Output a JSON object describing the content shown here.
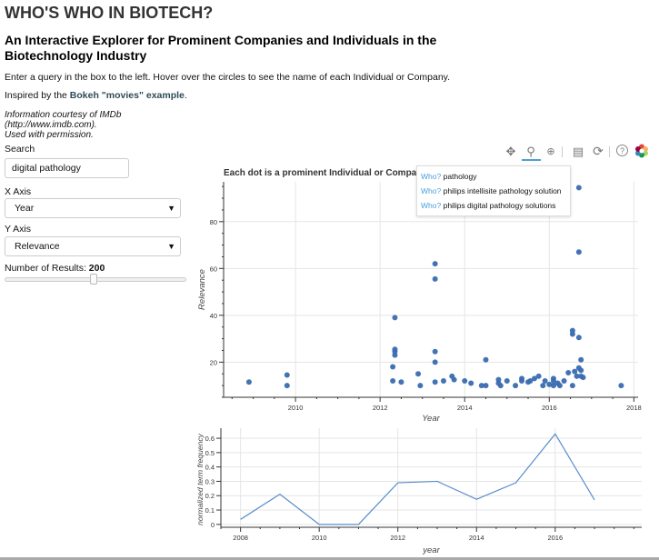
{
  "header": {
    "title": "WHO'S WHO IN BIOTECH?",
    "subtitle_line1": "An Interactive Explorer for Prominent Companies and Individuals in the",
    "subtitle_line2": "Biotechnology Industry",
    "instructions": "Enter a query in the box to the left. Hover over the circles to see the name of each Individual or Company.",
    "inspired_prefix": "Inspired by the ",
    "inspired_link": "Bokeh \"movies\" example",
    "inspired_suffix": ".",
    "credit_line1": "Information courtesy of IMDb",
    "credit_line2": "(http://www.imdb.com).",
    "credit_line3": "Used with permission."
  },
  "controls": {
    "search_label": "Search",
    "search_value": "digital pathology",
    "x_axis_label": "X Axis",
    "x_axis_value": "Year",
    "y_axis_label": "Y Axis",
    "y_axis_value": "Relevance",
    "results_label": "Number of Results: ",
    "results_value": "200",
    "results_fraction": 0.49
  },
  "toolbar": {
    "icons": [
      "pan-icon",
      "box-zoom-icon",
      "wheel-zoom-icon",
      "save-icon",
      "reset-icon",
      "help-icon",
      "bokeh-logo"
    ]
  },
  "tooltip": {
    "key": "Who?",
    "rows": [
      "pathology",
      "philips intellisite pathology solution",
      "philips digital pathology solutions"
    ]
  },
  "chart_data": [
    {
      "type": "scatter",
      "title": "Each dot is a prominent Individual or Company",
      "xlabel": "Year",
      "ylabel": "Relevance",
      "xlim": [
        2008.3,
        2018.1
      ],
      "ylim": [
        5,
        97
      ],
      "xticks": [
        2010,
        2012,
        2014,
        2016,
        2018
      ],
      "yticks": [
        20,
        40,
        60,
        80
      ],
      "grid": true,
      "color": "#3a6cb0",
      "points": [
        [
          2008.9,
          11.5
        ],
        [
          2009.8,
          14.5
        ],
        [
          2009.8,
          10
        ],
        [
          2012.3,
          12
        ],
        [
          2012.3,
          18
        ],
        [
          2012.35,
          39
        ],
        [
          2012.35,
          25.5
        ],
        [
          2012.35,
          24.5
        ],
        [
          2012.35,
          23
        ],
        [
          2012.5,
          11.5
        ],
        [
          2012.9,
          15
        ],
        [
          2012.95,
          10
        ],
        [
          2013.3,
          62
        ],
        [
          2013.3,
          55.5
        ],
        [
          2013.3,
          24.5
        ],
        [
          2013.3,
          20
        ],
        [
          2013.3,
          11.5
        ],
        [
          2013.5,
          12
        ],
        [
          2013.7,
          14
        ],
        [
          2013.75,
          12.5
        ],
        [
          2014.0,
          12
        ],
        [
          2014.15,
          11
        ],
        [
          2014.4,
          10
        ],
        [
          2014.5,
          10
        ],
        [
          2014.5,
          21
        ],
        [
          2014.8,
          12.5
        ],
        [
          2014.8,
          11
        ],
        [
          2014.85,
          10
        ],
        [
          2015.0,
          12
        ],
        [
          2015.2,
          10
        ],
        [
          2015.35,
          12
        ],
        [
          2015.5,
          11.5
        ],
        [
          2015.65,
          13
        ],
        [
          2015.75,
          14
        ],
        [
          2015.85,
          10
        ],
        [
          2015.9,
          12
        ],
        [
          2015.35,
          13
        ],
        [
          2015.55,
          12
        ],
        [
          2016.1,
          10
        ],
        [
          2016.1,
          13
        ],
        [
          2016.1,
          12
        ],
        [
          2016.2,
          11
        ],
        [
          2016.25,
          10
        ],
        [
          2016.35,
          12
        ],
        [
          2016.45,
          15.5
        ],
        [
          2016.55,
          10
        ],
        [
          2016.6,
          16
        ],
        [
          2016.65,
          14
        ],
        [
          2016.7,
          94.5
        ],
        [
          2016.7,
          67
        ],
        [
          2016.7,
          30.5
        ],
        [
          2016.7,
          17.5
        ],
        [
          2016.75,
          21
        ],
        [
          2016.75,
          16.5
        ],
        [
          2016.75,
          14
        ],
        [
          2016.8,
          13.5
        ],
        [
          2016.55,
          33.5
        ],
        [
          2016.55,
          32
        ],
        [
          2017.7,
          10
        ],
        [
          2016.0,
          10.5
        ]
      ]
    },
    {
      "type": "line",
      "title": "",
      "xlabel": "year",
      "ylabel": "normalized term frequency",
      "xlim": [
        2007.5,
        2018.2
      ],
      "ylim": [
        -0.02,
        0.67
      ],
      "xticks": [
        2008,
        2010,
        2012,
        2014,
        2016
      ],
      "yticks": [
        0,
        0.1,
        0.2,
        0.3,
        0.4,
        0.5,
        0.6
      ],
      "grid": true,
      "color": "#5b8ecb",
      "x": [
        2008,
        2009,
        2010,
        2011,
        2012,
        2013,
        2014,
        2015,
        2016,
        2017
      ],
      "y": [
        0.035,
        0.21,
        0.0,
        0.0,
        0.29,
        0.3,
        0.175,
        0.29,
        0.63,
        0.17
      ]
    }
  ]
}
